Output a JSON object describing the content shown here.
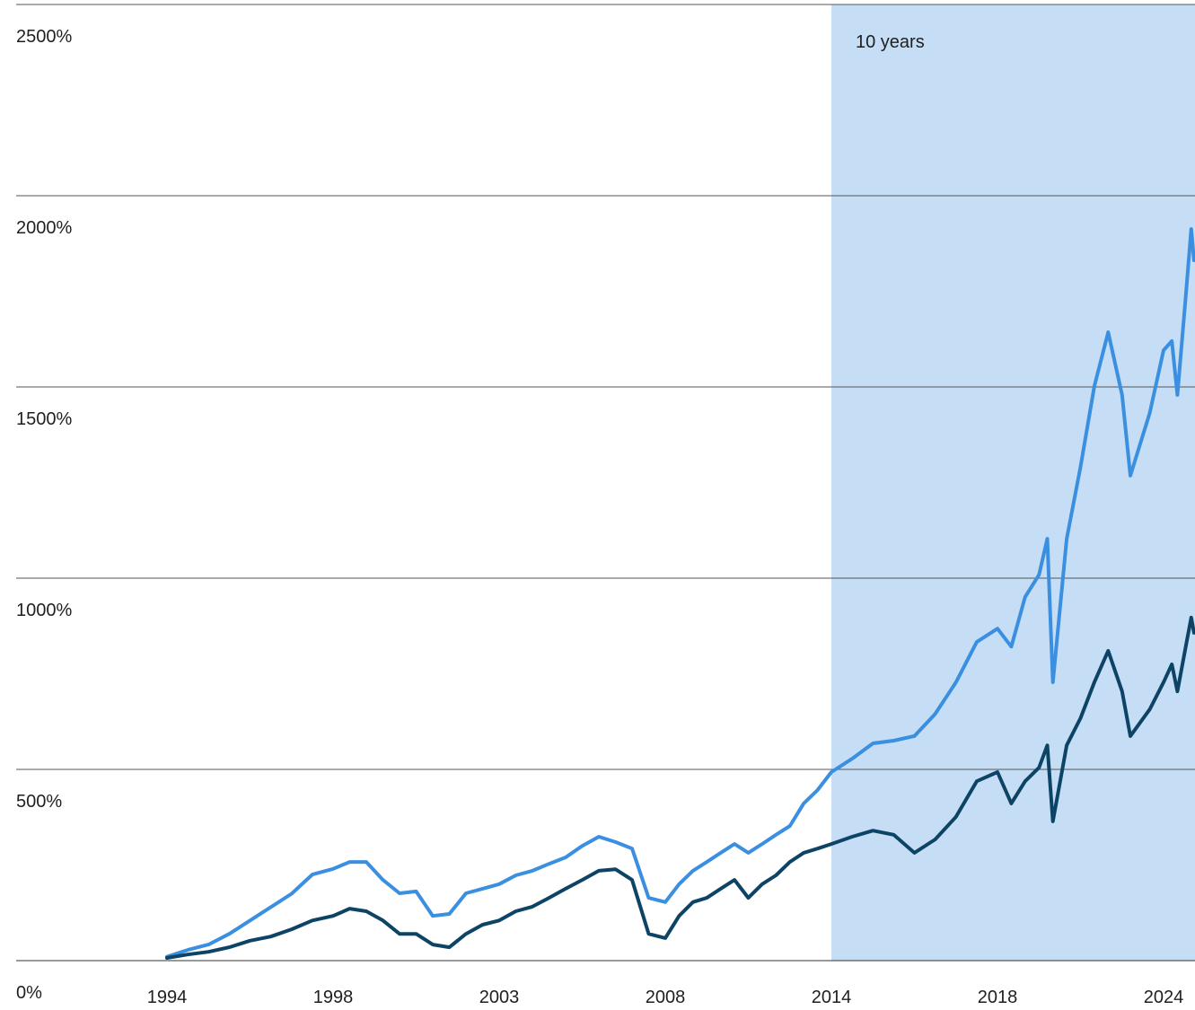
{
  "chart_data": {
    "type": "line",
    "annotation": "10 years",
    "shade_start": 2014,
    "shade_color": "#c5def5",
    "x": [
      1994.0,
      1994.5,
      1995.0,
      1995.5,
      1996.0,
      1996.5,
      1997.0,
      1997.5,
      1998.0,
      1998.5,
      1999.0,
      1999.5,
      2000.0,
      2000.5,
      2001.0,
      2001.5,
      2002.0,
      2002.5,
      2003.0,
      2003.5,
      2004.0,
      2004.5,
      2005.0,
      2005.5,
      2006.0,
      2006.5,
      2007.0,
      2007.5,
      2008.0,
      2008.5,
      2009.0,
      2009.5,
      2010.0,
      2010.5,
      2011.0,
      2011.5,
      2012.0,
      2012.5,
      2013.0,
      2013.5,
      2014.0,
      2014.5,
      2015.0,
      2015.5,
      2016.0,
      2016.5,
      2017.0,
      2017.5,
      2018.0,
      2018.5,
      2019.0,
      2019.5,
      2019.8,
      2020.0,
      2020.5,
      2021.0,
      2021.5,
      2022.0,
      2022.5,
      2022.8,
      2023.5,
      2024.0,
      2024.3,
      2024.5,
      2024.8,
      2025.0,
      2025.1
    ],
    "series": [
      {
        "color": "#3b8fe0",
        "values": [
          10,
          28,
          42,
          70,
          105,
          140,
          175,
          225,
          240,
          258,
          258,
          211,
          176,
          181,
          117,
          122,
          176,
          188,
          200,
          223,
          235,
          253,
          270,
          300,
          324,
          310,
          293,
          164,
          153,
          200,
          235,
          258,
          282,
          305,
          282,
          305,
          329,
          352,
          411,
          446,
          493,
          528,
          568,
          575,
          587,
          645,
          728,
          833,
          868,
          821,
          951,
          1009,
          1103,
          728,
          1103,
          1291,
          1502,
          1643,
          1479,
          1268,
          1432,
          1596,
          1620,
          1479,
          1737,
          1913,
          1831
        ]
      },
      {
        "color": "#0d4466",
        "values": [
          7,
          16,
          23,
          35,
          52,
          63,
          82,
          105,
          117,
          136,
          129,
          105,
          70,
          70,
          42,
          35,
          70,
          94,
          105,
          129,
          141,
          164,
          188,
          211,
          235,
          239,
          211,
          70,
          59,
          117,
          153,
          164,
          188,
          211,
          164,
          200,
          223,
          258,
          282,
          293,
          305,
          324,
          340,
          329,
          282,
          317,
          376,
          469,
          493,
          411,
          469,
          505,
          563,
          364,
          563,
          634,
          728,
          810,
          704,
          587,
          657,
          728,
          775,
          704,
          821,
          897,
          857
        ]
      }
    ],
    "xlim": [
      1990.4,
      2025.1
    ],
    "xticks": [
      1994,
      1998,
      2003,
      2008,
      2014,
      2018,
      2024
    ],
    "ylim": [
      0,
      2500
    ],
    "yticks": [
      {
        "value": 0,
        "label": "0%"
      },
      {
        "value": 500,
        "label": "500%"
      },
      {
        "value": 1000,
        "label": "1000%"
      },
      {
        "value": 1500,
        "label": "1500%"
      },
      {
        "value": 2000,
        "label": "2000%"
      },
      {
        "value": 2500,
        "label": "2500%"
      }
    ],
    "grid": true
  }
}
